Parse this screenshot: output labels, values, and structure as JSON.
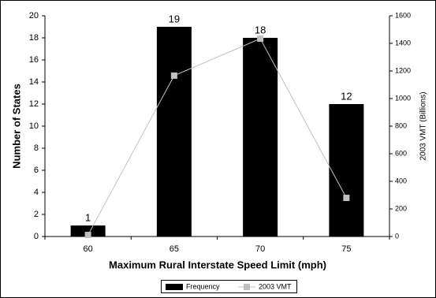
{
  "chart_data": {
    "type": "bar",
    "x_label": "Maximum Rural Interstate Speed Limit (mph)",
    "y_label": "Number of States",
    "y2_label": "2003 VMT (Billions)",
    "categories": [
      "60",
      "65",
      "70",
      "75"
    ],
    "series": [
      {
        "name": "Frequency",
        "color": "#000000",
        "values": [
          1,
          19,
          18,
          12
        ]
      },
      {
        "name": "2003 VMT",
        "color": "#c0c0c0",
        "type": "line",
        "axis": "y2",
        "values": [
          11,
          1166,
          1434,
          280
        ]
      }
    ],
    "ylim": [
      0,
      20
    ],
    "yticks": [
      0,
      2,
      4,
      6,
      8,
      10,
      12,
      14,
      16,
      18,
      20
    ],
    "y2lim": [
      0,
      1600
    ],
    "y2ticks": [
      0,
      200,
      400,
      600,
      800,
      1000,
      1200,
      1400,
      1600
    ],
    "legend": "bottom"
  }
}
